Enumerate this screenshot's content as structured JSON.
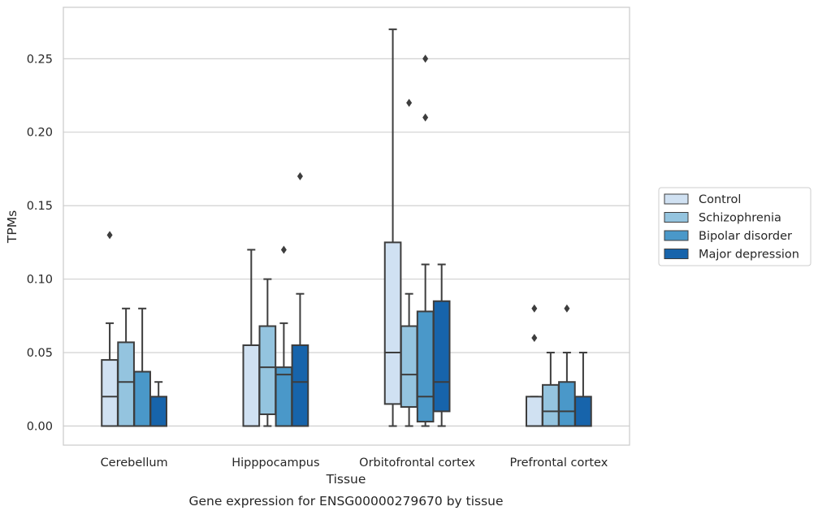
{
  "chart_data": {
    "type": "box",
    "xlabel": "Tissue",
    "ylabel": "TPMs",
    "caption": "Gene expression for ENSG00000279670 by tissue",
    "ylim": [
      -0.013,
      0.285
    ],
    "yticks": [
      "0.00",
      "0.05",
      "0.10",
      "0.15",
      "0.20",
      "0.25"
    ],
    "categories": [
      "Cerebellum",
      "Hipppocampus",
      "Orbitofrontal cortex",
      "Prefrontal cortex"
    ],
    "grid": "horizontal",
    "legend_position": "right",
    "series": [
      {
        "name": "Control",
        "color": "#d0e1f2",
        "boxes": [
          {
            "whisker_low": 0.0,
            "q1": 0.0,
            "median": 0.02,
            "q3": 0.045,
            "whisker_high": 0.07,
            "outliers": [
              0.13
            ]
          },
          {
            "whisker_low": 0.0,
            "q1": 0.0,
            "median": 0.0,
            "q3": 0.055,
            "whisker_high": 0.12,
            "outliers": []
          },
          {
            "whisker_low": 0.0,
            "q1": 0.015,
            "median": 0.05,
            "q3": 0.125,
            "whisker_high": 0.27,
            "outliers": []
          },
          {
            "whisker_low": 0.0,
            "q1": 0.0,
            "median": 0.0,
            "q3": 0.02,
            "whisker_high": 0.02,
            "outliers": [
              0.08,
              0.06
            ]
          }
        ]
      },
      {
        "name": "Schizophrenia",
        "color": "#94c4df",
        "boxes": [
          {
            "whisker_low": 0.0,
            "q1": 0.0,
            "median": 0.03,
            "q3": 0.057,
            "whisker_high": 0.08,
            "outliers": []
          },
          {
            "whisker_low": 0.0,
            "q1": 0.008,
            "median": 0.04,
            "q3": 0.068,
            "whisker_high": 0.1,
            "outliers": []
          },
          {
            "whisker_low": 0.0,
            "q1": 0.013,
            "median": 0.035,
            "q3": 0.068,
            "whisker_high": 0.09,
            "outliers": [
              0.22
            ]
          },
          {
            "whisker_low": 0.0,
            "q1": 0.0,
            "median": 0.01,
            "q3": 0.028,
            "whisker_high": 0.05,
            "outliers": []
          }
        ]
      },
      {
        "name": "Bipolar disorder",
        "color": "#4a98c9",
        "boxes": [
          {
            "whisker_low": 0.0,
            "q1": 0.0,
            "median": 0.0,
            "q3": 0.037,
            "whisker_high": 0.08,
            "outliers": []
          },
          {
            "whisker_low": 0.0,
            "q1": 0.0,
            "median": 0.035,
            "q3": 0.04,
            "whisker_high": 0.07,
            "outliers": [
              0.12
            ]
          },
          {
            "whisker_low": 0.0,
            "q1": 0.003,
            "median": 0.02,
            "q3": 0.078,
            "whisker_high": 0.11,
            "outliers": [
              0.25,
              0.21
            ]
          },
          {
            "whisker_low": 0.0,
            "q1": 0.0,
            "median": 0.01,
            "q3": 0.03,
            "whisker_high": 0.05,
            "outliers": [
              0.08
            ]
          }
        ]
      },
      {
        "name": "Major depression",
        "color": "#1764ab",
        "boxes": [
          {
            "whisker_low": 0.0,
            "q1": 0.0,
            "median": 0.0,
            "q3": 0.02,
            "whisker_high": 0.03,
            "outliers": []
          },
          {
            "whisker_low": 0.0,
            "q1": 0.0,
            "median": 0.03,
            "q3": 0.055,
            "whisker_high": 0.09,
            "outliers": [
              0.17
            ]
          },
          {
            "whisker_low": 0.0,
            "q1": 0.01,
            "median": 0.03,
            "q3": 0.085,
            "whisker_high": 0.11,
            "outliers": []
          },
          {
            "whisker_low": 0.0,
            "q1": 0.0,
            "median": 0.0,
            "q3": 0.02,
            "whisker_high": 0.05,
            "outliers": []
          }
        ]
      }
    ]
  }
}
